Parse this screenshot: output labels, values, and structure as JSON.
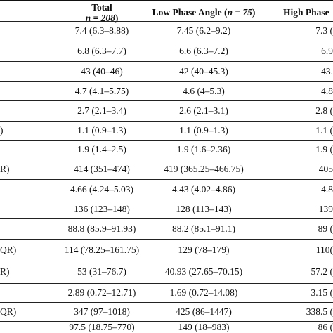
{
  "header": {
    "total_label": "Total",
    "total_n": "n = 208",
    "low_label": "Low Phase Angle (",
    "low_n": "n = 75",
    "low_close": ")",
    "high_label": "High Phase"
  },
  "rows": [
    {
      "stub": "",
      "total": "7.4 (6.3–8.88)",
      "low": "7.45 (6.2–9.2)",
      "high": "7.3 ("
    },
    {
      "stub": "",
      "total": "6.8 (6.3–7.7)",
      "low": "6.6 (6.3–7.2)",
      "high": "6.9"
    },
    {
      "stub": "",
      "total": "43 (40–46)",
      "low": "42 (40–45.3)",
      "high": "43."
    },
    {
      "stub": "",
      "total": "4.7 (4.1–5.75)",
      "low": "4.6 (4–5.3)",
      "high": "4.8"
    },
    {
      "stub": "",
      "total": "2.7 (2.1–3.4)",
      "low": "2.6 (2.1–3.1)",
      "high": "2.8 ("
    },
    {
      "stub": ")",
      "total": "1.1 (0.9–1.3)",
      "low": "1.1 (0.9–1.3)",
      "high": "1.1 ("
    },
    {
      "stub": "",
      "total": "1.9 (1.4–2.5)",
      "low": "1.9 (1.6–2.36)",
      "high": "1.9 ("
    },
    {
      "stub": "R)",
      "total": "414 (351–474)",
      "low": "419 (365.25–466.75)",
      "high": "405"
    },
    {
      "stub": "",
      "total": "4.66 (4.24–5.03)",
      "low": "4.43 (4.02–4.86)",
      "high": "4.8"
    },
    {
      "stub": "",
      "total": "136 (123–148)",
      "low": "128 (113–143)",
      "high": "139"
    },
    {
      "stub": "",
      "total": "88.8 (85.9–91.93)",
      "low": "88.2 (85.1–91.1)",
      "high": "89 ("
    },
    {
      "stub": "QR)",
      "total": "114 (78.25–161.75)",
      "low": "129 (78–179)",
      "high": "110("
    },
    {
      "stub": "R)",
      "total": "53 (31–76.7)",
      "low": "40.93 (27.65–70.15)",
      "high": "57.2 ("
    },
    {
      "stub": "",
      "total": "2.89 (0.72–12.71)",
      "low": "1.69 (0.72–14.08)",
      "high": "3.15 ("
    },
    {
      "stub": "QR)",
      "total": "347 (97–1018)",
      "low": "425 (86–1447)",
      "high": "338.5 ("
    },
    {
      "stub": "",
      "total": "97.5 (18.75–770)",
      "low": "149 (18–983)",
      "high": "86 ("
    }
  ]
}
